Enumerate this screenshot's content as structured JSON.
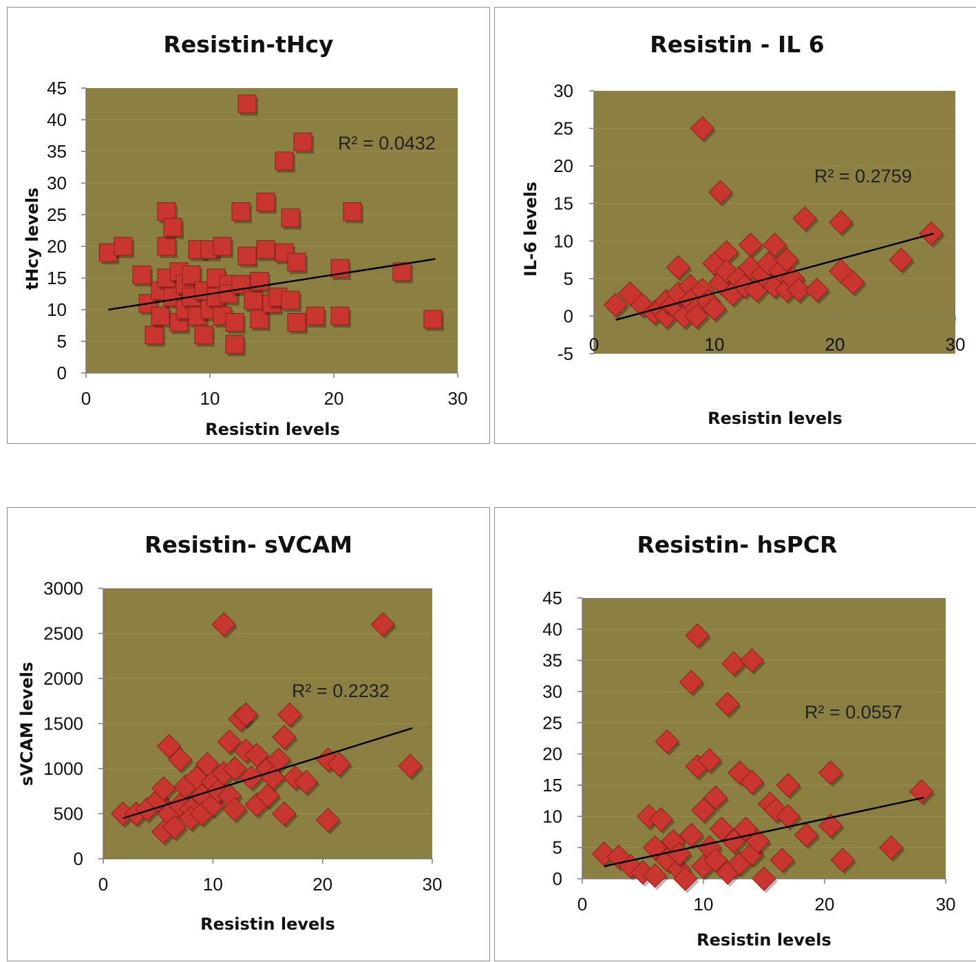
{
  "colors": {
    "plot_bg": "#8b7f41",
    "marker": "#c8362f",
    "marker_edge": "#8e1f1a",
    "trendline": "#000000",
    "gridline": "#a89d62"
  },
  "chart_data": [
    {
      "type": "scatter",
      "marker": "square",
      "title": "Resistin-tHcy",
      "xlabel": "Resistin levels",
      "ylabel": "tHcy levels",
      "xlim": [
        0,
        30
      ],
      "ylim": [
        0,
        45
      ],
      "xticks": [
        0,
        10,
        20,
        30
      ],
      "yticks": [
        0,
        5,
        10,
        15,
        20,
        25,
        30,
        35,
        40,
        45
      ],
      "annotation": "R² = 0.0432",
      "trendline": [
        [
          1.8,
          10
        ],
        [
          28.2,
          18
        ]
      ],
      "points": [
        [
          1.8,
          19
        ],
        [
          3,
          20
        ],
        [
          4.5,
          15.5
        ],
        [
          5,
          11
        ],
        [
          5.5,
          6
        ],
        [
          6,
          13
        ],
        [
          6,
          9
        ],
        [
          6.5,
          15
        ],
        [
          6.5,
          25.5
        ],
        [
          6.5,
          20
        ],
        [
          7,
          23
        ],
        [
          7,
          12
        ],
        [
          7.5,
          8
        ],
        [
          7.5,
          16
        ],
        [
          8,
          10
        ],
        [
          8,
          14
        ],
        [
          8.5,
          15.5
        ],
        [
          8.5,
          12
        ],
        [
          9,
          9
        ],
        [
          9,
          19.5
        ],
        [
          9.5,
          6
        ],
        [
          9.5,
          13
        ],
        [
          10,
          10
        ],
        [
          10,
          19.5
        ],
        [
          10.5,
          15
        ],
        [
          10.5,
          12
        ],
        [
          11,
          9
        ],
        [
          11,
          20
        ],
        [
          11.5,
          14
        ],
        [
          11.5,
          12.5
        ],
        [
          12,
          8
        ],
        [
          12,
          4.5
        ],
        [
          12.5,
          25.5
        ],
        [
          12.5,
          14
        ],
        [
          13,
          42.5
        ],
        [
          13,
          18.5
        ],
        [
          13.5,
          11.5
        ],
        [
          14,
          14.5
        ],
        [
          14,
          8.5
        ],
        [
          14.5,
          19.5
        ],
        [
          14.5,
          27
        ],
        [
          15,
          11
        ],
        [
          15.5,
          12
        ],
        [
          16,
          19
        ],
        [
          16,
          33.5
        ],
        [
          16.5,
          11.5
        ],
        [
          16.5,
          24.5
        ],
        [
          17,
          17.5
        ],
        [
          17,
          8
        ],
        [
          17.5,
          36.5
        ],
        [
          18.5,
          9
        ],
        [
          20.5,
          16.5
        ],
        [
          20.5,
          9
        ],
        [
          21.5,
          25.5
        ],
        [
          25.5,
          16
        ],
        [
          28,
          8.5
        ]
      ]
    },
    {
      "type": "scatter",
      "marker": "diamond",
      "title": "Resistin - IL 6",
      "xlabel": "Resistin levels",
      "ylabel": "IL-6  levels",
      "xlim": [
        0,
        30
      ],
      "ylim": [
        -5,
        30
      ],
      "xticks": [
        0,
        10,
        20,
        30
      ],
      "yticks": [
        -5,
        0,
        5,
        10,
        15,
        20,
        25,
        30
      ],
      "annotation": "R² = 0.2759",
      "trendline": [
        [
          1.8,
          -0.5
        ],
        [
          28.2,
          11
        ]
      ],
      "points": [
        [
          1.8,
          1.5
        ],
        [
          3,
          3
        ],
        [
          4,
          1.5
        ],
        [
          5,
          0.5
        ],
        [
          5.5,
          1
        ],
        [
          6,
          0
        ],
        [
          6,
          2
        ],
        [
          6.5,
          1.5
        ],
        [
          7,
          6.5
        ],
        [
          7,
          3
        ],
        [
          7.5,
          0
        ],
        [
          8,
          4
        ],
        [
          8,
          2
        ],
        [
          8.5,
          1
        ],
        [
          8.5,
          0
        ],
        [
          9,
          3.5
        ],
        [
          9,
          25
        ],
        [
          9.5,
          2
        ],
        [
          10,
          7
        ],
        [
          10,
          1
        ],
        [
          10.5,
          4.5
        ],
        [
          10.5,
          16.5
        ],
        [
          11,
          8.5
        ],
        [
          11,
          6
        ],
        [
          11.5,
          3
        ],
        [
          12,
          5
        ],
        [
          12.5,
          4
        ],
        [
          13,
          9.5
        ],
        [
          13,
          6.5
        ],
        [
          13.5,
          3.5
        ],
        [
          14,
          5.5
        ],
        [
          14.5,
          7
        ],
        [
          15,
          9.5
        ],
        [
          15,
          4
        ],
        [
          15.5,
          6
        ],
        [
          16,
          3.5
        ],
        [
          16,
          7.5
        ],
        [
          16.5,
          5
        ],
        [
          17,
          3.5
        ],
        [
          17.5,
          13
        ],
        [
          18.5,
          3.5
        ],
        [
          20.5,
          12.5
        ],
        [
          20.5,
          6
        ],
        [
          21.5,
          4.5
        ],
        [
          25.5,
          7.5
        ],
        [
          28,
          11
        ]
      ]
    },
    {
      "type": "scatter",
      "marker": "diamond",
      "title": "Resistin- sVCAM",
      "xlabel": "Resistin levels",
      "ylabel": "sVCAM levels",
      "xlim": [
        0,
        30
      ],
      "ylim": [
        0,
        3000
      ],
      "xticks": [
        0,
        10,
        20,
        30
      ],
      "yticks": [
        0,
        500,
        1000,
        1500,
        2000,
        2500,
        3000
      ],
      "annotation": "R² = 0.2232",
      "trendline": [
        [
          1.8,
          450
        ],
        [
          28.2,
          1450
        ]
      ],
      "points": [
        [
          1.8,
          500
        ],
        [
          3,
          500
        ],
        [
          4,
          550
        ],
        [
          5,
          650
        ],
        [
          5.5,
          300
        ],
        [
          5.5,
          780
        ],
        [
          6,
          1250
        ],
        [
          6,
          500
        ],
        [
          6.5,
          350
        ],
        [
          7,
          1100
        ],
        [
          7,
          600
        ],
        [
          7.5,
          800
        ],
        [
          8,
          550
        ],
        [
          8,
          450
        ],
        [
          8.5,
          900
        ],
        [
          9,
          700
        ],
        [
          9,
          500
        ],
        [
          9.5,
          1050
        ],
        [
          10,
          850
        ],
        [
          10,
          600
        ],
        [
          10.5,
          750
        ],
        [
          11,
          2600
        ],
        [
          11,
          950
        ],
        [
          11.5,
          1300
        ],
        [
          11.5,
          700
        ],
        [
          12,
          550
        ],
        [
          12,
          1000
        ],
        [
          12.5,
          1550
        ],
        [
          13,
          1600
        ],
        [
          13,
          1200
        ],
        [
          13.5,
          900
        ],
        [
          14,
          600
        ],
        [
          14,
          1150
        ],
        [
          15,
          700
        ],
        [
          15,
          1000
        ],
        [
          15.5,
          900
        ],
        [
          16,
          1100
        ],
        [
          16.5,
          1350
        ],
        [
          16.5,
          500
        ],
        [
          17,
          1600
        ],
        [
          17.5,
          900
        ],
        [
          18.5,
          850
        ],
        [
          20.5,
          1100
        ],
        [
          20.5,
          430
        ],
        [
          21.5,
          1050
        ],
        [
          25.5,
          2600
        ],
        [
          28,
          1030
        ]
      ]
    },
    {
      "type": "scatter",
      "marker": "diamond",
      "title": "Resistin- hsPCR",
      "xlabel": "Resistin levels",
      "ylabel": "",
      "xlim": [
        0,
        30
      ],
      "ylim": [
        0,
        45
      ],
      "xticks": [
        0,
        10,
        20,
        30
      ],
      "yticks": [
        0,
        5,
        10,
        15,
        20,
        25,
        30,
        35,
        40,
        45
      ],
      "annotation": "R² = 0.0557",
      "trendline": [
        [
          1.8,
          2
        ],
        [
          28.2,
          13
        ]
      ],
      "points": [
        [
          1.8,
          4
        ],
        [
          3,
          3.5
        ],
        [
          4,
          2
        ],
        [
          5,
          1
        ],
        [
          5.5,
          10
        ],
        [
          6,
          0.5
        ],
        [
          6,
          5
        ],
        [
          6.5,
          9.5
        ],
        [
          7,
          22
        ],
        [
          7,
          3
        ],
        [
          7.5,
          6
        ],
        [
          8,
          1.5
        ],
        [
          8,
          4
        ],
        [
          8.5,
          0
        ],
        [
          9,
          7
        ],
        [
          9,
          31.5
        ],
        [
          9.5,
          39
        ],
        [
          9.5,
          18
        ],
        [
          10,
          11
        ],
        [
          10,
          2
        ],
        [
          10.5,
          19
        ],
        [
          10.5,
          5
        ],
        [
          11,
          13
        ],
        [
          11,
          3
        ],
        [
          11.5,
          8
        ],
        [
          12,
          28
        ],
        [
          12,
          1
        ],
        [
          12.5,
          34.5
        ],
        [
          12.5,
          6
        ],
        [
          13,
          17
        ],
        [
          13,
          2.5
        ],
        [
          13.5,
          8
        ],
        [
          14,
          15.5
        ],
        [
          14,
          35
        ],
        [
          14,
          4
        ],
        [
          14.5,
          6
        ],
        [
          15,
          0
        ],
        [
          15.5,
          12
        ],
        [
          16,
          11
        ],
        [
          16.5,
          3
        ],
        [
          17,
          15
        ],
        [
          17,
          10
        ],
        [
          18.5,
          7
        ],
        [
          20.5,
          17
        ],
        [
          20.5,
          8.5
        ],
        [
          21.5,
          3
        ],
        [
          25.5,
          5
        ],
        [
          28,
          14
        ]
      ]
    }
  ]
}
